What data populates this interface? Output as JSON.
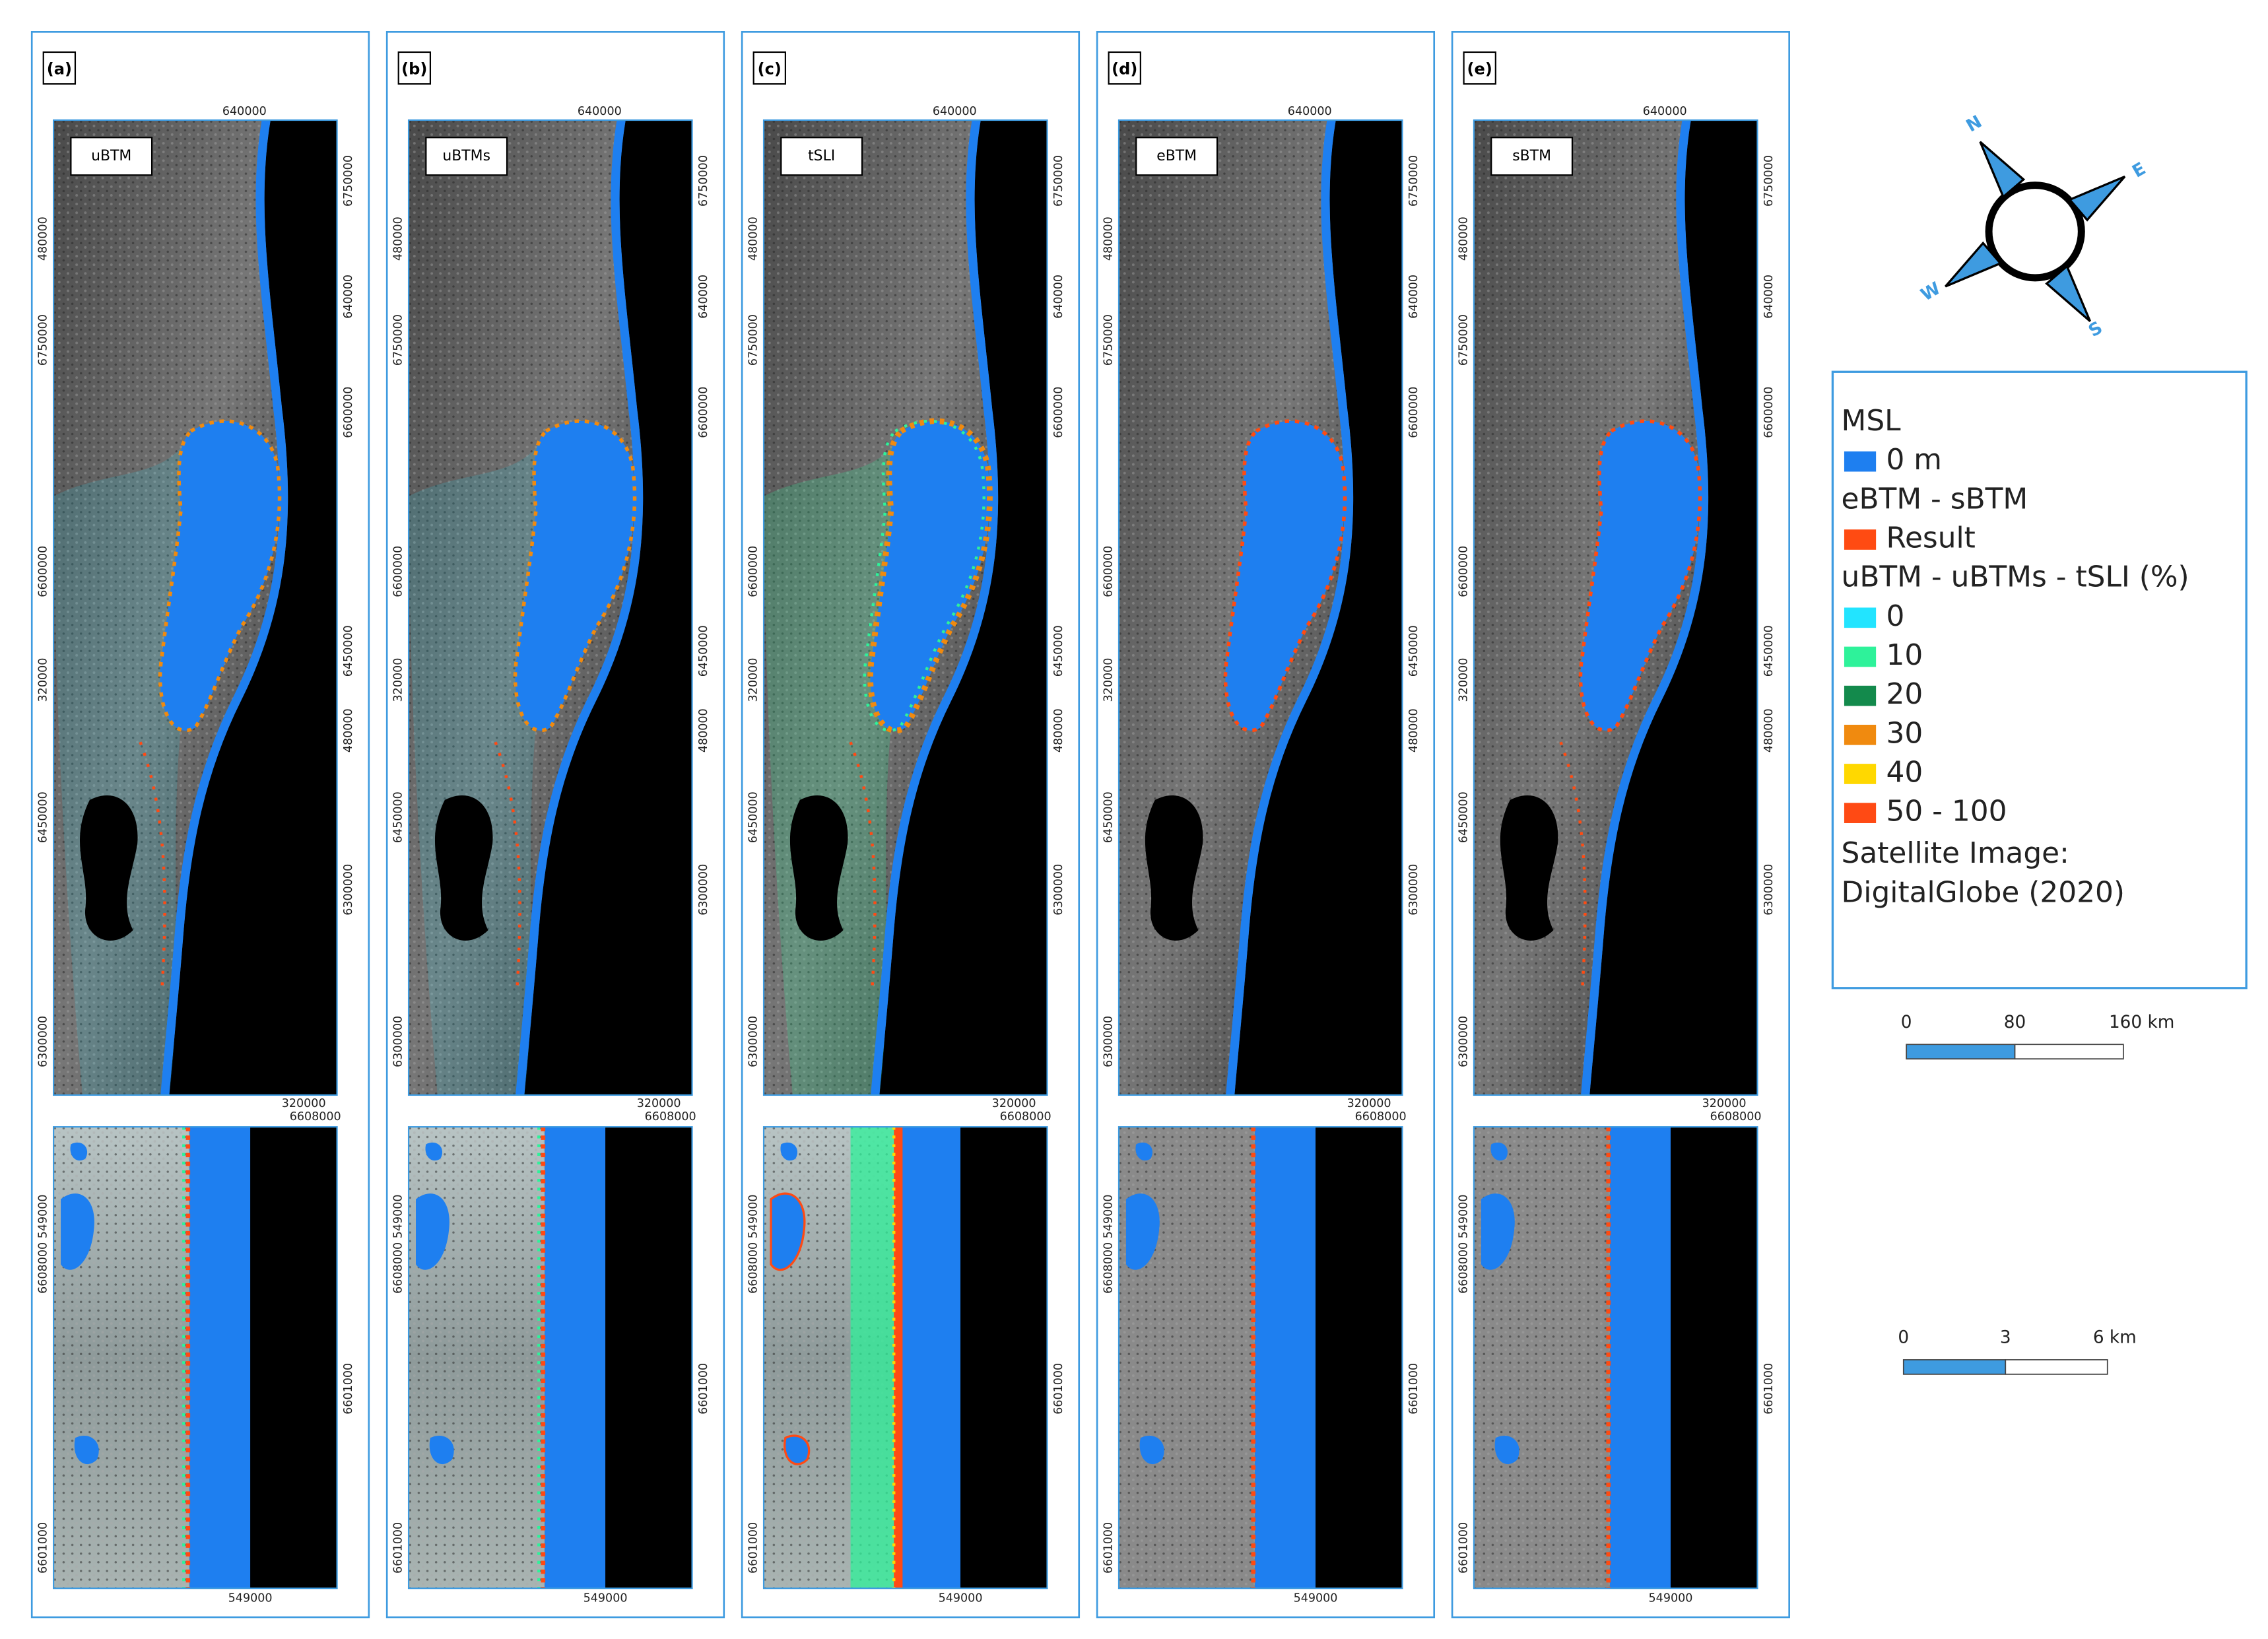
{
  "panels": [
    {
      "label": "(a)",
      "map_title": "uBTM"
    },
    {
      "label": "(b)",
      "map_title": "uBTMs"
    },
    {
      "label": "(c)",
      "map_title": "tSLI"
    },
    {
      "label": "(d)",
      "map_title": "eBTM"
    },
    {
      "label": "(e)",
      "map_title": "sBTM"
    }
  ],
  "main_map_coordinates": {
    "top": [
      "640000"
    ],
    "left": [
      "480000",
      "6750000",
      "6600000",
      "320000",
      "6450000",
      "6300000"
    ],
    "right": [
      "6750000",
      "640000",
      "6600000",
      "6450000",
      "480000",
      "6300000"
    ],
    "bottom": [
      "320000"
    ]
  },
  "inset_coordinates": {
    "top": [
      "6608000"
    ],
    "left": [
      "6608000 549000",
      "6601000"
    ],
    "right": [
      "6601000"
    ],
    "bottom": [
      "549000"
    ]
  },
  "compass": {
    "north": "N",
    "east": "E",
    "south": "S",
    "west": "W"
  },
  "legend": {
    "sections": [
      {
        "title": "MSL",
        "items": [
          {
            "label": "0 m",
            "color": "#1e7ff0"
          }
        ]
      },
      {
        "title": "eBTM - sBTM",
        "items": [
          {
            "label": "Result",
            "color": "#ff4b12"
          }
        ]
      },
      {
        "title": "uBTM - uBTMs - tSLI (%)",
        "items": [
          {
            "label": "0",
            "color": "#22e4ff"
          },
          {
            "label": "10",
            "color": "#2ef29a"
          },
          {
            "label": "20",
            "color": "#138a4c"
          },
          {
            "label": "30",
            "color": "#f08a0f"
          },
          {
            "label": "40",
            "color": "#ffd800"
          },
          {
            "label": "50 - 100",
            "color": "#ff4a14"
          }
        ]
      }
    ],
    "source": [
      "Satellite Image:",
      "DigitalGlobe (2020)"
    ]
  },
  "scale_bars": [
    {
      "labels": [
        "0",
        "80",
        "160 km"
      ]
    },
    {
      "labels": [
        "0",
        "3",
        "6 km"
      ]
    }
  ]
}
